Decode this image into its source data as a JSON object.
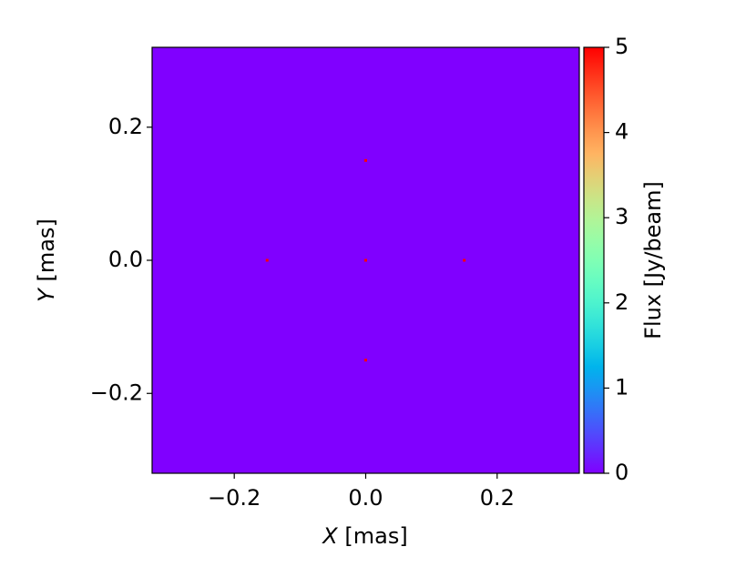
{
  "chart_data": {
    "type": "scatter",
    "x": [
      0,
      0,
      0,
      -0.15,
      0.15
    ],
    "values": [
      0.15,
      0,
      -0.15,
      0,
      0
    ],
    "flux": [
      5,
      5,
      5,
      5,
      5
    ],
    "background": 0,
    "xlabel": "X [mas]",
    "ylabel": "Y [mas]",
    "xlim": [
      -0.325,
      0.325
    ],
    "ylim": [
      -0.32,
      0.32
    ],
    "xticks": [
      {
        "value": -0.2,
        "label": "−0.2"
      },
      {
        "value": 0.0,
        "label": "0.0"
      },
      {
        "value": 0.2,
        "label": "0.2"
      }
    ],
    "yticks": [
      {
        "value": -0.2,
        "label": "−0.2"
      },
      {
        "value": 0.0,
        "label": "0.0"
      },
      {
        "value": 0.2,
        "label": "0.2"
      }
    ],
    "colormap": "rainbow",
    "clim": [
      0,
      5
    ],
    "cticks": [
      0,
      1,
      2,
      3,
      4,
      5
    ],
    "colorbar_label": "Flux [Jy/beam]"
  }
}
